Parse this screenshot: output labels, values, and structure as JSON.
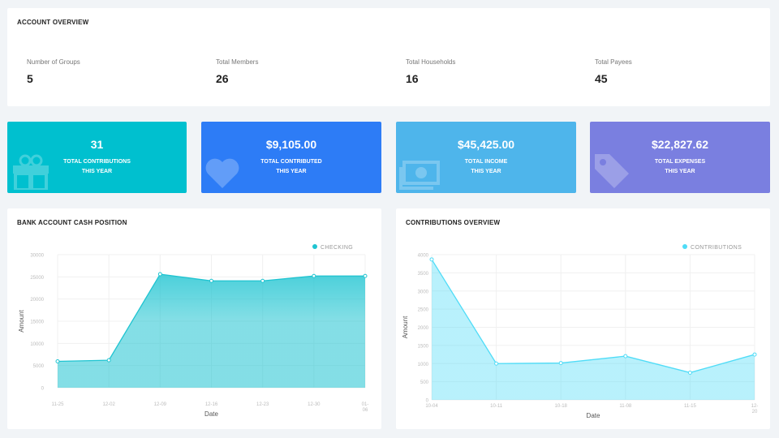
{
  "overview": {
    "title": "ACCOUNT OVERVIEW",
    "stats": [
      {
        "label": "Number of Groups",
        "value": "5"
      },
      {
        "label": "Total Members",
        "value": "26"
      },
      {
        "label": "Total Households",
        "value": "16"
      },
      {
        "label": "Total Payees",
        "value": "45"
      }
    ]
  },
  "tiles": [
    {
      "value": "31",
      "line1": "TOTAL CONTRIBUTIONS",
      "line2": "THIS YEAR",
      "color": "#00c0cf",
      "icon": "gift-icon"
    },
    {
      "value": "$9,105.00",
      "line1": "TOTAL CONTRIBUTED",
      "line2": "THIS YEAR",
      "color": "#2d7cf6",
      "icon": "heart-icon"
    },
    {
      "value": "$45,425.00",
      "line1": "TOTAL INCOME",
      "line2": "THIS YEAR",
      "color": "#4eb5eb",
      "icon": "money-icon"
    },
    {
      "value": "$22,827.62",
      "line1": "TOTAL EXPENSES",
      "line2": "THIS YEAR",
      "color": "#7a7fe0",
      "icon": "tag-icon"
    }
  ],
  "chart_data": [
    {
      "type": "area",
      "title": "BANK ACCOUNT CASH POSITION",
      "xlabel": "Date",
      "ylabel": "Amount",
      "ylim": [
        0,
        30000
      ],
      "yticks": [
        0,
        5000,
        10000,
        15000,
        20000,
        25000,
        30000
      ],
      "categories": [
        "11-25",
        "12-02",
        "12-09",
        "12-16",
        "12-23",
        "12-30",
        "01-06"
      ],
      "series": [
        {
          "name": "CHECKING",
          "values": [
            5950,
            6200,
            25600,
            24100,
            24100,
            25200,
            25200
          ],
          "color": "#1fc4d1"
        }
      ],
      "legend": "top-right",
      "grid": true
    },
    {
      "type": "area",
      "title": "CONTRIBUTIONS OVERVIEW",
      "xlabel": "Date",
      "ylabel": "Amount",
      "ylim": [
        0,
        4000
      ],
      "yticks": [
        0,
        500,
        1000,
        1500,
        2000,
        2500,
        3000,
        3500,
        4000
      ],
      "categories": [
        "10-04",
        "10-11",
        "10-18",
        "11-08",
        "11-15",
        "12-20"
      ],
      "series": [
        {
          "name": "CONTRIBUTIONS",
          "values": [
            3870,
            1000,
            1015,
            1205,
            750,
            1250
          ],
          "color": "#4fdcf7"
        }
      ],
      "legend": "top-right",
      "grid": true
    }
  ]
}
